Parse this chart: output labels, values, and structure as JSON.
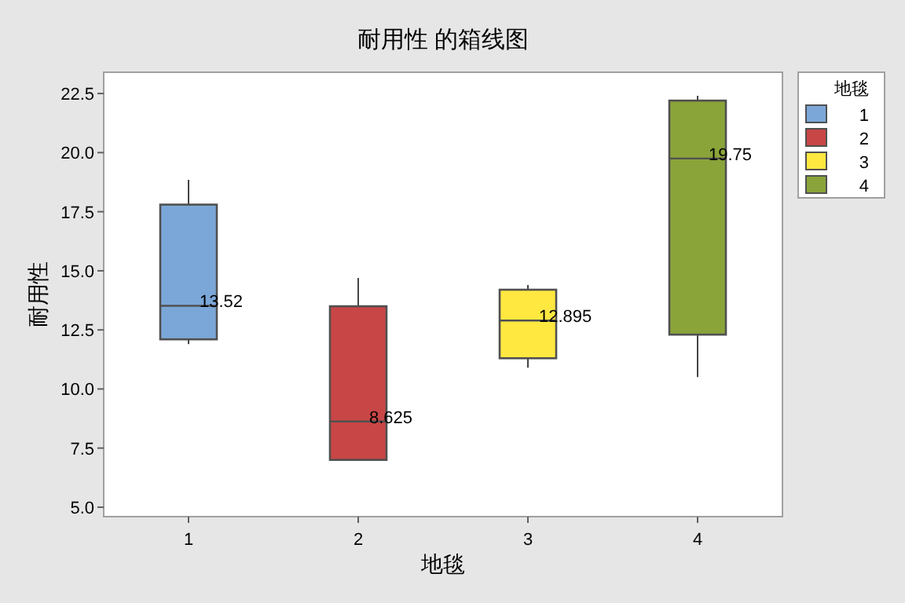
{
  "chart_data": {
    "type": "box",
    "title": "耐用性 的箱线图",
    "xlabel": "地毯",
    "ylabel": "耐用性",
    "legend_title": "地毯",
    "categories": [
      "1",
      "2",
      "3",
      "4"
    ],
    "series": [
      {
        "name": "1",
        "color": "#7ba7d8",
        "boxes": [
          {
            "low": 11.9,
            "q1": 12.1,
            "median": 13.52,
            "q3": 17.8,
            "high": 18.85
          },
          null,
          null,
          null
        ]
      },
      {
        "name": "2",
        "color": "#c84646",
        "boxes": [
          null,
          {
            "low": 7.0,
            "q1": 7.0,
            "median": 8.625,
            "q3": 13.5,
            "high": 14.7
          },
          null,
          null
        ]
      },
      {
        "name": "3",
        "color": "#ffe840",
        "boxes": [
          null,
          null,
          {
            "low": 10.9,
            "q1": 11.3,
            "median": 12.895,
            "q3": 14.2,
            "high": 14.4
          },
          null
        ]
      },
      {
        "name": "4",
        "color": "#8aa43a",
        "boxes": [
          null,
          null,
          null,
          {
            "low": 10.5,
            "q1": 12.3,
            "median": 19.75,
            "q3": 22.2,
            "high": 22.4
          }
        ]
      }
    ],
    "annotations": [
      {
        "text": "13.52",
        "x": "1",
        "y": 13.52
      },
      {
        "text": "8.625",
        "x": "2",
        "y": 8.625
      },
      {
        "text": "12.895",
        "x": "3",
        "y": 12.895
      },
      {
        "text": "19.75",
        "x": "4",
        "y": 19.75
      }
    ],
    "ylim": [
      4.6,
      23.4
    ],
    "yticks": [
      {
        "value": 5,
        "label": "5.0"
      },
      {
        "value": 7.5,
        "label": "7.5"
      },
      {
        "value": 10,
        "label": "10.0"
      },
      {
        "value": 12.5,
        "label": "12.5"
      },
      {
        "value": 15,
        "label": "15.0"
      },
      {
        "value": 17.5,
        "label": "17.5"
      },
      {
        "value": 20,
        "label": "20.0"
      },
      {
        "value": 22.5,
        "label": "22.5"
      }
    ],
    "legend": "right"
  }
}
